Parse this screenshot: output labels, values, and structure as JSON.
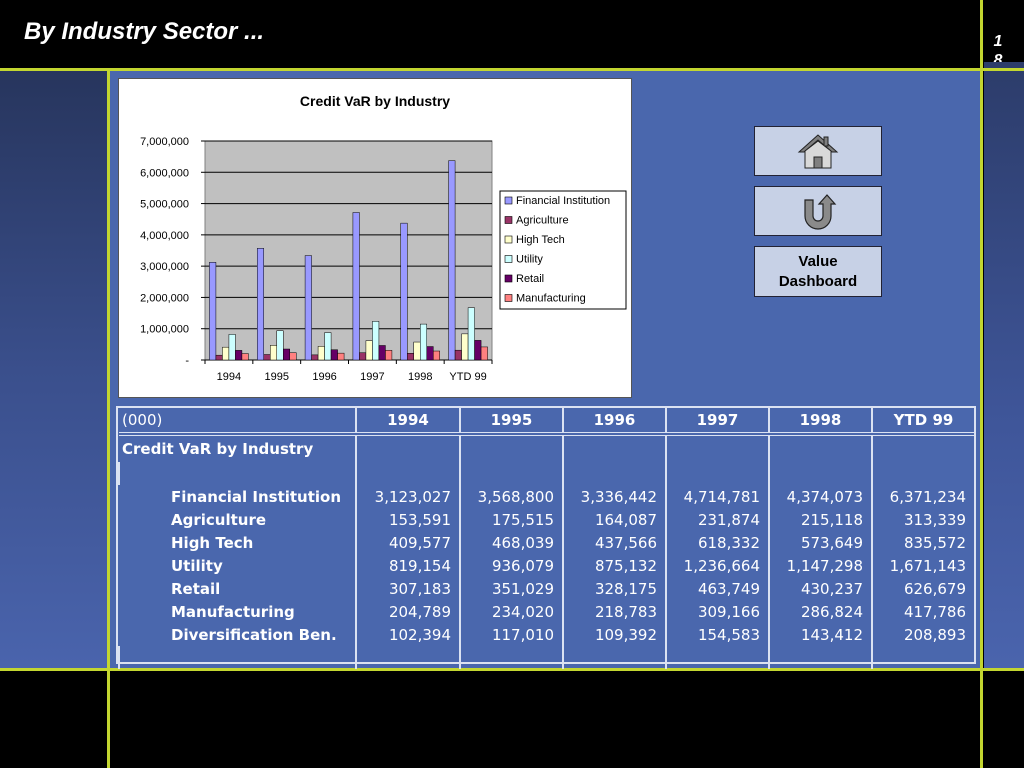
{
  "slide": {
    "title": "By Industry Sector ...",
    "page_number_digits": [
      "1",
      "8"
    ]
  },
  "nav": {
    "home_icon": "home-icon",
    "back_icon": "u-turn-back-icon",
    "value_dashboard_line1": "Value",
    "value_dashboard_line2": "Dashboard"
  },
  "chart_data": {
    "type": "bar",
    "title": "Credit VaR by Industry",
    "xlabel": "",
    "ylabel": "",
    "categories": [
      "1994",
      "1995",
      "1996",
      "1997",
      "1998",
      "YTD 99"
    ],
    "ylim": [
      0,
      7000000
    ],
    "yticks": [
      0,
      1000000,
      2000000,
      3000000,
      4000000,
      5000000,
      6000000,
      7000000
    ],
    "ytick_labels": [
      "-",
      "1,000,000",
      "2,000,000",
      "3,000,000",
      "4,000,000",
      "5,000,000",
      "6,000,000",
      "7,000,000"
    ],
    "grid": true,
    "legend_position": "right",
    "series": [
      {
        "name": "Financial Institution",
        "color": "#9999ff",
        "values": [
          3123027,
          3568800,
          3336442,
          4714781,
          4374073,
          6371234
        ]
      },
      {
        "name": "Agriculture",
        "color": "#993366",
        "values": [
          153591,
          175515,
          164087,
          231874,
          215118,
          313339
        ]
      },
      {
        "name": "High Tech",
        "color": "#ffffcc",
        "values": [
          409577,
          468039,
          437566,
          618332,
          573649,
          835572
        ]
      },
      {
        "name": "Utility",
        "color": "#ccffff",
        "values": [
          819154,
          936079,
          875132,
          1236664,
          1147298,
          1671143
        ]
      },
      {
        "name": "Retail",
        "color": "#660066",
        "values": [
          307183,
          351029,
          328175,
          463749,
          430237,
          626679
        ]
      },
      {
        "name": "Manufacturing",
        "color": "#ff8080",
        "values": [
          204789,
          234020,
          218783,
          309166,
          286824,
          417786
        ]
      }
    ]
  },
  "table": {
    "unit_label": "(000)",
    "columns": [
      "1994",
      "1995",
      "1996",
      "1997",
      "1998",
      "YTD 99"
    ],
    "section_title": "Credit VaR by Industry",
    "rows": [
      {
        "label": "Financial Institution",
        "values": [
          "3,123,027",
          "3,568,800",
          "3,336,442",
          "4,714,781",
          "4,374,073",
          "6,371,234"
        ]
      },
      {
        "label": "Agriculture",
        "values": [
          "153,591",
          "175,515",
          "164,087",
          "231,874",
          "215,118",
          "313,339"
        ]
      },
      {
        "label": "High Tech",
        "values": [
          "409,577",
          "468,039",
          "437,566",
          "618,332",
          "573,649",
          "835,572"
        ]
      },
      {
        "label": "Utility",
        "values": [
          "819,154",
          "936,079",
          "875,132",
          "1,236,664",
          "1,147,298",
          "1,671,143"
        ]
      },
      {
        "label": "Retail",
        "values": [
          "307,183",
          "351,029",
          "328,175",
          "463,749",
          "430,237",
          "626,679"
        ]
      },
      {
        "label": "Manufacturing",
        "values": [
          "204,789",
          "234,020",
          "218,783",
          "309,166",
          "286,824",
          "417,786"
        ]
      },
      {
        "label": "Diversification Ben.",
        "values": [
          "102,394",
          "117,010",
          "109,392",
          "154,583",
          "143,412",
          "208,893"
        ]
      }
    ]
  },
  "colors": {
    "frame_lines": "#c3d630",
    "content_background": "#4a67ad",
    "table_border": "#dbe2f2"
  }
}
